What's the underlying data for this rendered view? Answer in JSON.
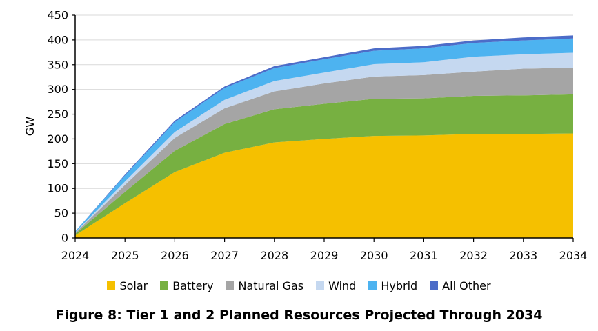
{
  "caption": "Figure 8: Tier 1 and 2 Planned Resources Projected Through 2034",
  "chart_data": {
    "type": "area",
    "stacked": true,
    "title": "",
    "xlabel": "",
    "ylabel": "GW",
    "x": [
      2024,
      2025,
      2026,
      2027,
      2028,
      2029,
      2030,
      2031,
      2032,
      2033,
      2034
    ],
    "ylim": [
      0,
      450
    ],
    "yticks": [
      0,
      50,
      100,
      150,
      200,
      250,
      300,
      350,
      400,
      450
    ],
    "grid": true,
    "legend_position": "bottom",
    "series": [
      {
        "name": "Solar",
        "color": "#F5C000",
        "values": [
          5,
          70,
          133,
          172,
          193,
          200,
          206,
          207,
          210,
          210,
          211
        ]
      },
      {
        "name": "Battery",
        "color": "#77B041",
        "values": [
          3,
          23,
          43,
          58,
          67,
          71,
          75,
          75,
          77,
          78,
          79
        ]
      },
      {
        "name": "Natural Gas",
        "color": "#A5A5A5",
        "values": [
          2,
          14,
          26,
          32,
          36,
          41,
          45,
          47,
          49,
          54,
          54
        ]
      },
      {
        "name": "Wind",
        "color": "#C5D8F0",
        "values": [
          1,
          7,
          12,
          17,
          21,
          22,
          25,
          26,
          30,
          29,
          30
        ]
      },
      {
        "name": "Hybrid",
        "color": "#4DB3F0",
        "values": [
          2,
          12,
          20,
          24,
          26,
          27,
          27,
          28,
          28,
          28,
          29
        ]
      },
      {
        "name": "All Other",
        "color": "#4C6CC8",
        "values": [
          0,
          2,
          3,
          3,
          4,
          4,
          5,
          5,
          5,
          6,
          6
        ]
      }
    ]
  }
}
